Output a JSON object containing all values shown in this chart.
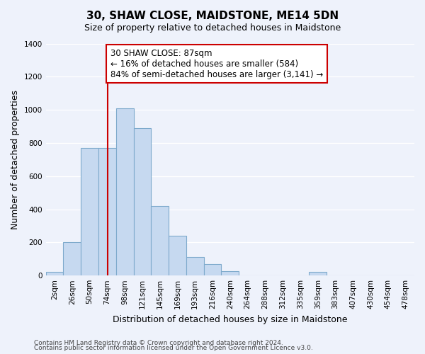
{
  "title": "30, SHAW CLOSE, MAIDSTONE, ME14 5DN",
  "subtitle": "Size of property relative to detached houses in Maidstone",
  "xlabel": "Distribution of detached houses by size in Maidstone",
  "ylabel": "Number of detached properties",
  "bar_labels": [
    "2sqm",
    "26sqm",
    "50sqm",
    "74sqm",
    "98sqm",
    "121sqm",
    "145sqm",
    "169sqm",
    "193sqm",
    "216sqm",
    "240sqm",
    "264sqm",
    "288sqm",
    "312sqm",
    "335sqm",
    "359sqm",
    "383sqm",
    "407sqm",
    "430sqm",
    "454sqm",
    "478sqm"
  ],
  "bar_values": [
    20,
    200,
    770,
    770,
    1010,
    890,
    420,
    240,
    110,
    70,
    25,
    0,
    0,
    0,
    0,
    20,
    0,
    0,
    0,
    0,
    0
  ],
  "bar_color": "#c6d9f0",
  "bar_edge_color": "#7eaacc",
  "vline_color": "#cc0000",
  "annotation_line1": "30 SHAW CLOSE: 87sqm",
  "annotation_line2": "← 16% of detached houses are smaller (584)",
  "annotation_line3": "84% of semi-detached houses are larger (3,141) →",
  "annotation_box_color": "#ffffff",
  "annotation_box_edge": "#cc0000",
  "ylim": [
    0,
    1400
  ],
  "yticks": [
    0,
    200,
    400,
    600,
    800,
    1000,
    1200,
    1400
  ],
  "footnote1": "Contains HM Land Registry data © Crown copyright and database right 2024.",
  "footnote2": "Contains public sector information licensed under the Open Government Licence v3.0.",
  "background_color": "#eef2fb",
  "grid_color": "#ffffff",
  "title_fontsize": 11,
  "subtitle_fontsize": 9,
  "axis_label_fontsize": 9,
  "tick_fontsize": 7.5,
  "footnote_fontsize": 6.5,
  "annot_fontsize": 8.5
}
